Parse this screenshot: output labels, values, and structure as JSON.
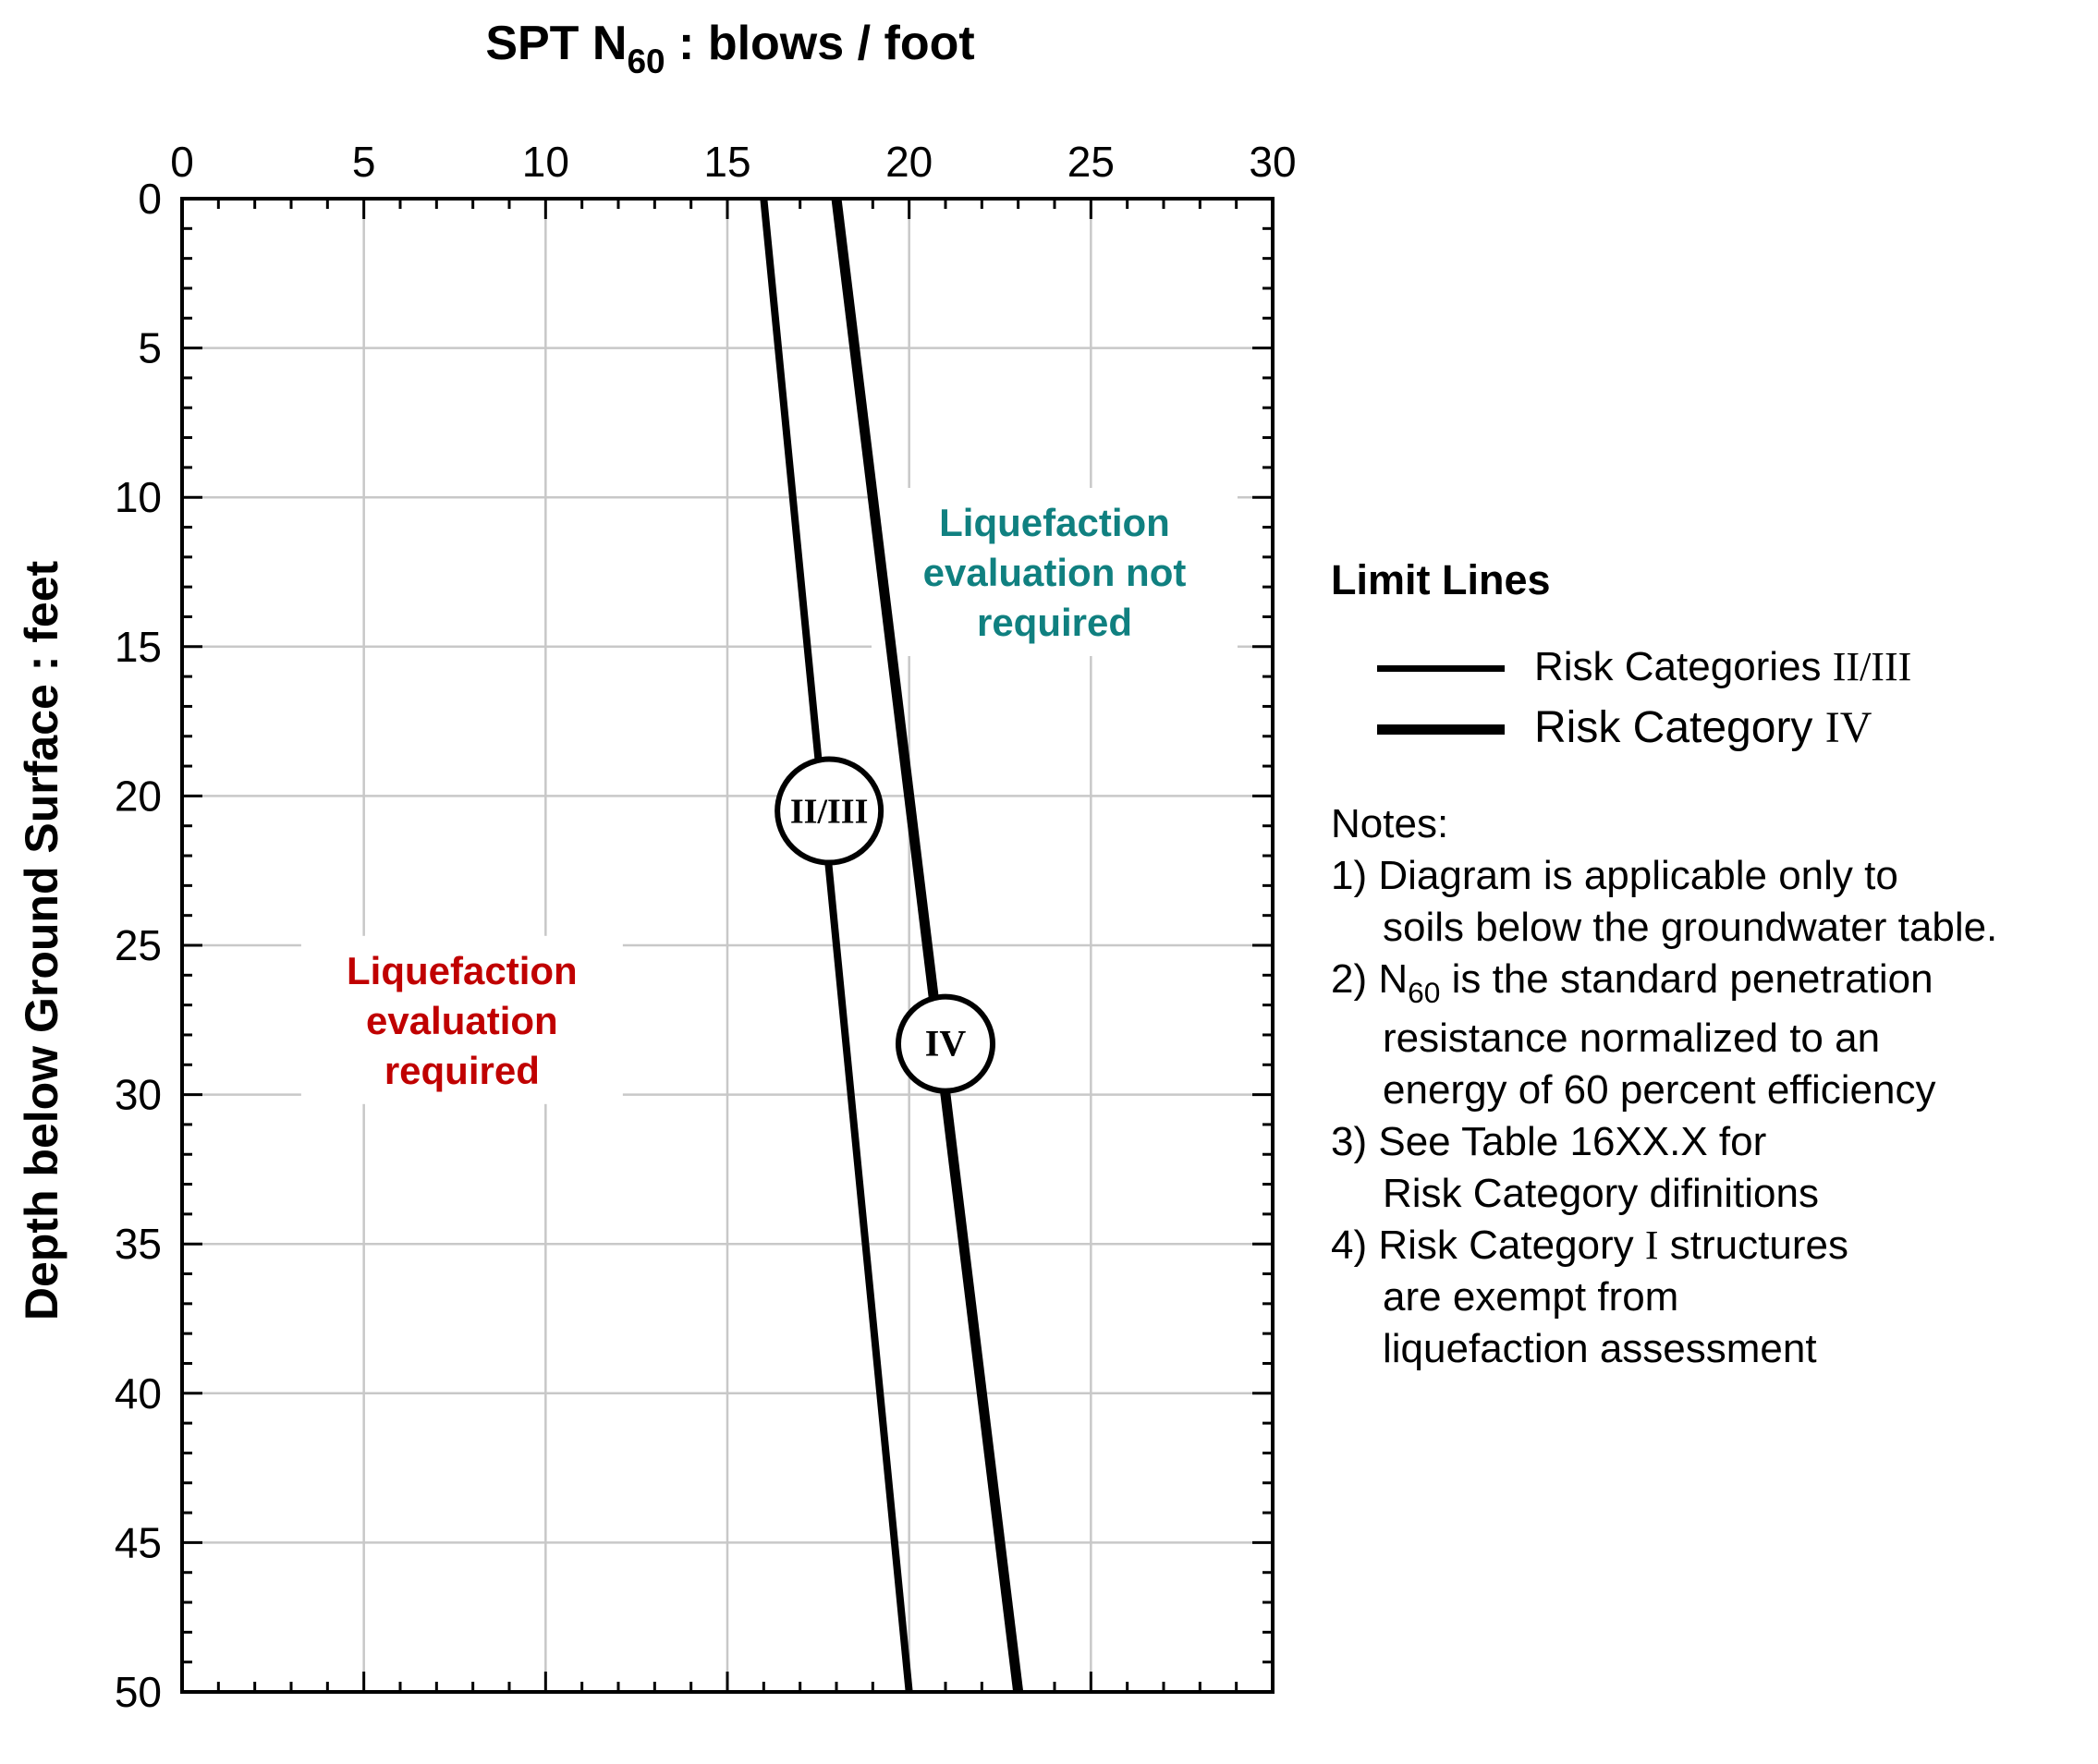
{
  "chart_data": {
    "type": "line",
    "title_parts": {
      "a": "SPT  N",
      "sub": "60",
      "b": "  :  blows / foot"
    },
    "ylabel": "Depth below Ground Surface  :  feet",
    "xlim": [
      0,
      30
    ],
    "ylim": [
      0,
      50
    ],
    "x_axis_position": "top",
    "y_inverted": true,
    "x_ticks": [
      "0",
      "5",
      "10",
      "15",
      "20",
      "25",
      "30"
    ],
    "y_ticks": [
      "0",
      "5",
      "10",
      "15",
      "20",
      "25",
      "30",
      "35",
      "40",
      "45",
      "50"
    ],
    "grid": true,
    "series": [
      {
        "name": "Risk Categories II/III",
        "marker_label": "II/III",
        "marker_at": [
          17.8,
          20.5
        ],
        "points": [
          [
            16,
            0
          ],
          [
            20,
            50
          ]
        ]
      },
      {
        "name": "Risk Category IV",
        "marker_label": "IV",
        "marker_at": [
          21.0,
          28.3
        ],
        "points": [
          [
            18,
            0
          ],
          [
            23,
            50
          ]
        ]
      }
    ],
    "annotations": [
      {
        "id": "not-required",
        "lines": [
          "Liquefaction",
          "evaluation not",
          "required"
        ],
        "color": "#108080",
        "at": [
          24.0,
          12.5
        ]
      },
      {
        "id": "required",
        "lines": [
          "Liquefaction",
          "evaluation",
          "required"
        ],
        "color": "#c00000",
        "at": [
          7.7,
          27.5
        ]
      }
    ]
  },
  "legend": {
    "title": "Limit Lines",
    "items": [
      {
        "prefix": "Risk Categories ",
        "roman": "II/III"
      },
      {
        "prefix": "Risk Category ",
        "roman": "IV"
      }
    ]
  },
  "notes": {
    "heading": "Notes:",
    "n1a": "1) Diagram is applicable only to",
    "n1b": "soils below the groundwater table.",
    "n2a_pre": "2) N",
    "n2a_sub": "60",
    "n2a_post": " is the standard penetration",
    "n2b": "resistance normalized to an",
    "n2c": "energy of 60 percent efficiency",
    "n3a": "3) See Table 16XX.X for",
    "n3b": "Risk Category difinitions",
    "n4a_pre": "4) Risk Category ",
    "n4a_roman": "I",
    "n4a_post": " structures",
    "n4b": "are exempt from",
    "n4c": "liquefaction assessment"
  },
  "colors": {
    "not_required": "#108080",
    "required": "#c00000",
    "grid": "#c8c8c8",
    "line": "#000000"
  }
}
